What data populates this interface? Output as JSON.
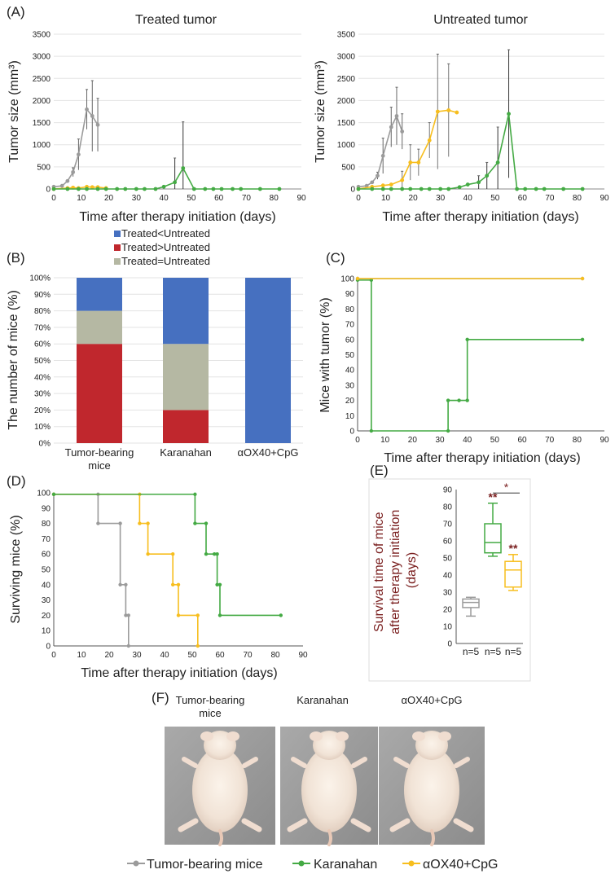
{
  "panel_labels": {
    "A": "(A)",
    "B": "(B)",
    "C": "(C)",
    "D": "(D)",
    "E": "(E)",
    "F": "(F)"
  },
  "legend": {
    "tumor_bearing": "Tumor-bearing mice",
    "karanahan": "Karanahan",
    "aox40": "αOX40+CpG",
    "colors": {
      "tumor_bearing": "#9b9b9b",
      "karanahan": "#44aa44",
      "aox40": "#f7be1e"
    }
  },
  "photos": {
    "labels": [
      "Tumor-bearing\nmice",
      "Karanahan",
      "αOX40+CpG"
    ]
  },
  "chart_data": [
    {
      "id": "A1",
      "type": "line",
      "title": "Treated tumor",
      "xlabel": "Time after therapy initiation (days)",
      "ylabel": "Tumor size (mm³)",
      "xlim": [
        0,
        90
      ],
      "ylim": [
        0,
        3500
      ],
      "xticks": [
        0,
        10,
        20,
        30,
        40,
        50,
        60,
        70,
        80,
        90
      ],
      "yticks": [
        0,
        500,
        1000,
        1500,
        2000,
        2500,
        3000,
        3500
      ],
      "series": [
        {
          "name": "Tumor-bearing mice",
          "color": "#9b9b9b",
          "x": [
            0,
            3,
            5,
            7,
            9,
            12,
            14,
            16
          ],
          "y": [
            50,
            70,
            180,
            380,
            780,
            1800,
            1650,
            1450
          ],
          "err": [
            0,
            0,
            0,
            100,
            350,
            450,
            800,
            600
          ]
        },
        {
          "name": "αOX40+CpG",
          "color": "#f7be1e",
          "x": [
            0,
            5,
            7,
            9,
            12,
            14,
            16,
            19
          ],
          "y": [
            0,
            20,
            30,
            20,
            50,
            40,
            40,
            20
          ],
          "err": [
            0,
            0,
            0,
            0,
            0,
            0,
            0,
            0
          ]
        },
        {
          "name": "Karanahan",
          "color": "#44aa44",
          "x": [
            0,
            5,
            9,
            12,
            16,
            19,
            23,
            26,
            30,
            33,
            37,
            40,
            44,
            47,
            51,
            55,
            58,
            61,
            65,
            68,
            75,
            82
          ],
          "y": [
            0,
            0,
            0,
            0,
            0,
            0,
            0,
            0,
            0,
            0,
            0,
            50,
            150,
            470,
            0,
            0,
            0,
            0,
            0,
            0,
            0,
            0
          ],
          "err": [
            0,
            0,
            0,
            0,
            0,
            0,
            0,
            0,
            0,
            0,
            0,
            0,
            550,
            1050,
            0,
            0,
            0,
            0,
            0,
            0,
            0,
            0
          ]
        }
      ]
    },
    {
      "id": "A2",
      "type": "line",
      "title": "Untreated tumor",
      "xlabel": "Time after therapy initiation (days)",
      "ylabel": "Tumor size (mm³)",
      "xlim": [
        0,
        90
      ],
      "ylim": [
        0,
        3500
      ],
      "xticks": [
        0,
        10,
        20,
        30,
        40,
        50,
        60,
        70,
        80,
        90
      ],
      "yticks": [
        0,
        500,
        1000,
        1500,
        2000,
        2500,
        3000,
        3500
      ],
      "series": [
        {
          "name": "Tumor-bearing mice",
          "color": "#9b9b9b",
          "x": [
            0,
            3,
            5,
            7,
            9,
            12,
            14,
            16
          ],
          "y": [
            50,
            70,
            150,
            300,
            750,
            1400,
            1650,
            1300
          ],
          "err": [
            0,
            0,
            0,
            80,
            400,
            450,
            650,
            400
          ]
        },
        {
          "name": "αOX40+CpG",
          "color": "#f7be1e",
          "x": [
            0,
            5,
            9,
            12,
            16,
            19,
            22,
            26,
            29,
            33,
            36
          ],
          "y": [
            0,
            50,
            80,
            100,
            200,
            600,
            600,
            1100,
            1750,
            1780,
            1730
          ],
          "err": [
            0,
            0,
            0,
            0,
            200,
            400,
            300,
            400,
            1300,
            1050,
            0
          ]
        },
        {
          "name": "Karanahan",
          "color": "#44aa44",
          "x": [
            0,
            5,
            9,
            12,
            16,
            19,
            23,
            26,
            30,
            33,
            37,
            40,
            44,
            47,
            51,
            55,
            58,
            61,
            65,
            68,
            75,
            82
          ],
          "y": [
            0,
            0,
            0,
            0,
            0,
            0,
            0,
            0,
            0,
            0,
            40,
            100,
            150,
            300,
            600,
            1700,
            0,
            0,
            0,
            0,
            0,
            0
          ],
          "err": [
            0,
            0,
            0,
            0,
            0,
            0,
            0,
            0,
            0,
            0,
            0,
            0,
            150,
            300,
            800,
            1450,
            0,
            0,
            0,
            0,
            0,
            0
          ]
        }
      ]
    },
    {
      "id": "B",
      "type": "bar",
      "stacked": true,
      "ylabel": "The number of mice (%)",
      "ylim": [
        0,
        100
      ],
      "yticks": [
        "0%",
        "10%",
        "20%",
        "30%",
        "40%",
        "50%",
        "60%",
        "70%",
        "80%",
        "90%",
        "100%"
      ],
      "categories": [
        "Tumor-bearing\nmice",
        "Karanahan",
        "αOX40+CpG"
      ],
      "series": [
        {
          "name": "Treated>Untreated",
          "color": "#c0272d",
          "values": [
            60,
            20,
            0
          ]
        },
        {
          "name": "Treated=Untreated",
          "color": "#b5b8a3",
          "values": [
            20,
            40,
            0
          ]
        },
        {
          "name": "Treated<Untreated",
          "color": "#4670c0",
          "values": [
            20,
            40,
            100
          ]
        }
      ],
      "legend_order": [
        "Treated<Untreated",
        "Treated>Untreated",
        "Treated=Untreated"
      ]
    },
    {
      "id": "C",
      "type": "line",
      "step": true,
      "xlabel": "Time after therapy initiation (days)",
      "ylabel": "Mice with tumor (%)",
      "xlim": [
        0,
        90
      ],
      "ylim": [
        0,
        100
      ],
      "xticks": [
        0,
        10,
        20,
        30,
        40,
        50,
        60,
        70,
        80,
        90
      ],
      "yticks": [
        0,
        10,
        20,
        30,
        40,
        50,
        60,
        70,
        80,
        90,
        100
      ],
      "series": [
        {
          "name": "Tumor-bearing mice",
          "color": "#9b9b9b",
          "x": [
            0,
            82
          ],
          "y": [
            100,
            100
          ]
        },
        {
          "name": "αOX40+CpG",
          "color": "#f7be1e",
          "x": [
            0,
            82
          ],
          "y": [
            100,
            100
          ]
        },
        {
          "name": "Karanahan",
          "color": "#44aa44",
          "x": [
            0,
            5,
            33,
            37,
            40,
            82
          ],
          "y": [
            99,
            0,
            20,
            20,
            60,
            60
          ]
        }
      ]
    },
    {
      "id": "D",
      "type": "line",
      "step": true,
      "xlabel": "Time after therapy initiation (days)",
      "ylabel": "Surviving mice (%)",
      "xlim": [
        0,
        90
      ],
      "ylim": [
        0,
        100
      ],
      "xticks": [
        0,
        10,
        20,
        30,
        40,
        50,
        60,
        70,
        80,
        90
      ],
      "yticks": [
        0,
        10,
        20,
        30,
        40,
        50,
        60,
        70,
        80,
        90,
        100
      ],
      "series": [
        {
          "name": "Tumor-bearing mice",
          "color": "#9b9b9b",
          "x": [
            0,
            16,
            24,
            26,
            27
          ],
          "y": [
            99,
            80,
            40,
            20,
            0
          ]
        },
        {
          "name": "αOX40+CpG",
          "color": "#f7be1e",
          "x": [
            0,
            31,
            34,
            43,
            45,
            52
          ],
          "y": [
            99,
            80,
            60,
            40,
            20,
            0
          ]
        },
        {
          "name": "Karanahan",
          "color": "#44aa44",
          "x": [
            0,
            51,
            55,
            58,
            59,
            60,
            82
          ],
          "y": [
            99,
            80,
            60,
            60,
            40,
            20,
            20
          ]
        }
      ]
    },
    {
      "id": "E",
      "type": "box",
      "ylabel": "Survival time  of mice\nafter therapy initiation\n(days)",
      "ylim": [
        0,
        90
      ],
      "yticks": [
        0,
        10,
        20,
        30,
        40,
        50,
        60,
        70,
        80,
        90
      ],
      "boxes": [
        {
          "name": "Tumor-bearing mice",
          "color": "#9b9b9b",
          "min": 16,
          "q1": 21,
          "median": 24,
          "q3": 26,
          "max": 27,
          "n_label": "n=5",
          "sig": ""
        },
        {
          "name": "Karanahan",
          "color": "#44aa44",
          "min": 51,
          "q1": 53,
          "median": 59,
          "q3": 70,
          "max": 82,
          "n_label": "n=5",
          "sig": "**"
        },
        {
          "name": "αOX40+CpG",
          "color": "#f7be1e",
          "min": 31,
          "q1": 33,
          "median": 43,
          "q3": 48,
          "max": 52,
          "n_label": "n=5",
          "sig": "**"
        }
      ],
      "bracket_sig": "*"
    }
  ]
}
